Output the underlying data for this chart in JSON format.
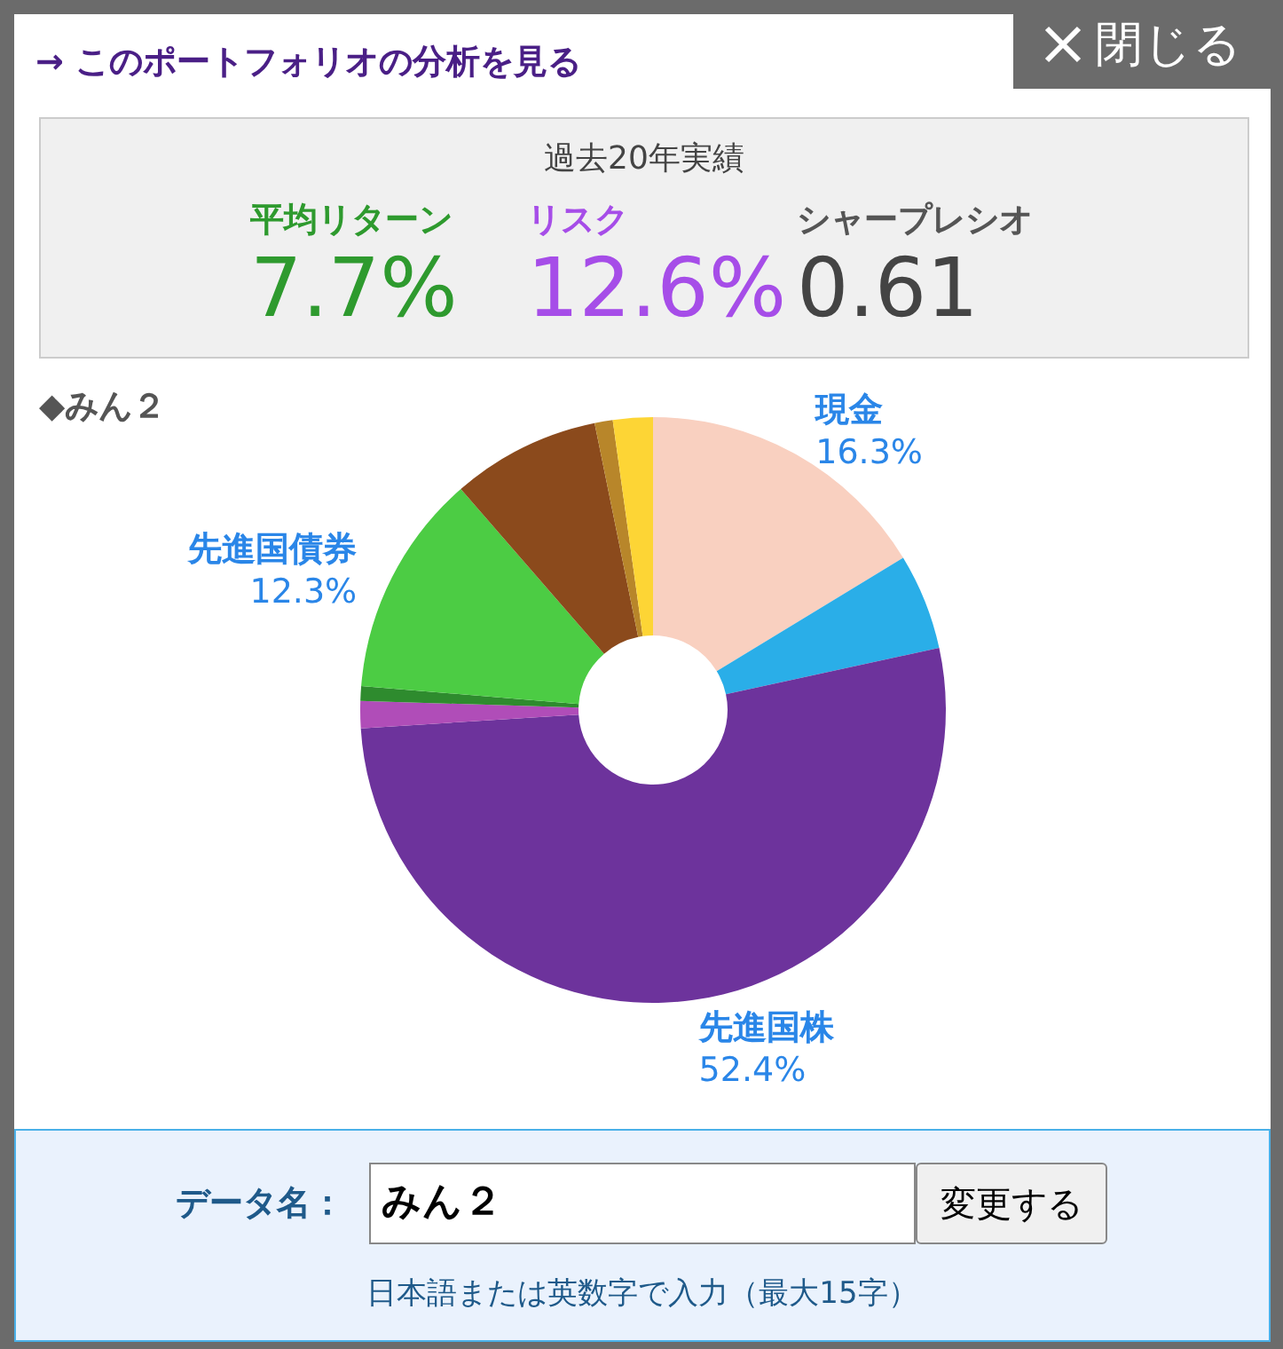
{
  "chart_data": {
    "type": "donut",
    "title": "◆みん２",
    "categories": [
      "現金",
      null,
      "先進国株",
      null,
      null,
      "先進国債券",
      null,
      null,
      null
    ],
    "values": [
      16.3,
      5.3,
      52.4,
      1.5,
      0.8,
      12.3,
      8.2,
      1.0,
      2.2
    ],
    "colors": [
      "#f9d0c0",
      "#2aaee8",
      "#6d339c",
      "#b04db8",
      "#2e8b2e",
      "#4ccc44",
      "#8b4a1c",
      "#b8862a",
      "#fdd535"
    ],
    "value_labels": [
      "16.3%",
      null,
      "52.4%",
      null,
      null,
      "12.3%",
      null,
      null,
      null
    ],
    "annotations": [
      "→ このポートフォリオの分析を見る",
      "過去20年実績",
      "平均リターン",
      "7.7%",
      "リスク",
      "12.6%",
      "シャープレシオ",
      "0.61",
      "閉じる",
      "データ名：",
      "みん２",
      "変更する",
      "日本語または英数字で入力（最大15字）"
    ]
  }
}
